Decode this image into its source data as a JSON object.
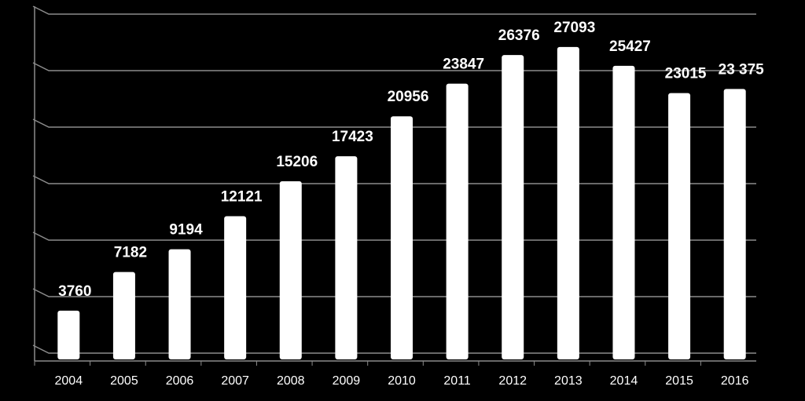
{
  "chart_data": {
    "type": "bar",
    "categories": [
      "2004",
      "2005",
      "2006",
      "2007",
      "2008",
      "2009",
      "2010",
      "2011",
      "2012",
      "2013",
      "2014",
      "2015",
      "2016"
    ],
    "values": [
      3760,
      7182,
      9194,
      12121,
      15206,
      17423,
      20956,
      23847,
      26376,
      27093,
      25427,
      23015,
      23375
    ],
    "value_labels": [
      "3760",
      "7182",
      "9194",
      "12121",
      "15206",
      "17423",
      "20956",
      "23847",
      "26376",
      "27093",
      "25427",
      "23015",
      "23 375"
    ],
    "color": "#ffffff",
    "ylim": [
      0,
      30000
    ],
    "yticks": [
      0,
      5000,
      10000,
      15000,
      20000,
      25000,
      30000
    ],
    "grid": true
  }
}
